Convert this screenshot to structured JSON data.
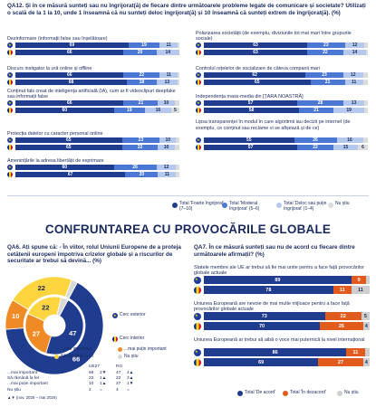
{
  "colors": {
    "dark": "#1f3c8f",
    "mid": "#4a78d4",
    "light": "#b5c8ee",
    "grey": "#dcdcdc",
    "pie_most": "#1f3c8f",
    "pie_same": "#fdd63f",
    "pie_less": "#f08a24",
    "pie_dk": "#d9d9d9",
    "agree": "#1f3c8f",
    "disagree": "#e25b1e",
    "dk": "#cfcfcf"
  },
  "qa12": {
    "title": "QA12. Și în ce măsură sunteți sau nu îngrijorat(ă) de fiecare dintre următoarele probleme legate de comunicare și societate? Utilizați o scală de la 1 la 10, unde 1 înseamnă că nu sunteți deloc îngrijorat(ă) și 10 înseamnă că sunteți extrem de îngrijorat(ă). (%)",
    "items": [
      {
        "label": "Dezinformare (informații false sau înșelătoare)",
        "eu": [
          69,
          19,
          11,
          1
        ],
        "ro": [
          66,
          20,
          14,
          0
        ]
      },
      {
        "label": "Discurs instigator la ură online și offline",
        "eu": [
          66,
          22,
          11,
          1
        ],
        "ro": [
          68,
          18,
          13,
          1
        ]
      },
      {
        "label": "Conținut fals creat de inteligența artificială (IA), cum ar fi videoclipuri deepfake sau informații false",
        "eu": [
          66,
          21,
          10,
          3
        ],
        "ro": [
          60,
          19,
          16,
          5
        ]
      },
      {
        "label": "Protecția datelor cu caracter personal online",
        "eu": [
          65,
          23,
          10,
          2
        ],
        "ro": [
          65,
          22,
          10,
          3
        ]
      },
      {
        "label": "Amenințările la adresa libertății de exprimare",
        "eu": [
          60,
          26,
          12,
          2
        ],
        "ro": [
          67,
          20,
          11,
          2
        ]
      },
      {
        "label": "Polarizarea societății (de exemplu, diviziunile tot mai mari între grupurile sociale)",
        "eu": [
          63,
          23,
          12,
          2
        ],
        "ro": [
          63,
          22,
          14,
          1
        ]
      },
      {
        "label": "Controlul rețelelor de socializare de câteva companii mari",
        "eu": [
          62,
          23,
          12,
          3
        ],
        "ro": [
          65,
          21,
          11,
          3
        ]
      },
      {
        "label": "Independența mass-media din [ȚARA NOASTRĂ]",
        "eu": [
          57,
          28,
          13,
          2
        ],
        "ro": [
          58,
          21,
          19,
          2
        ]
      },
      {
        "label": "Lipsa transparenței în modul în care algoritmii iau decizii pe internet (de exemplu, ce conținut sau reclame vi se afișează și de ce)",
        "eu": [
          55,
          26,
          16,
          3
        ],
        "ro": [
          57,
          22,
          15,
          6
        ]
      }
    ],
    "legend": [
      "Total 'Foarte îngrijorat' (7–10)",
      "Total 'Moderat îngrijorat' (5–6)",
      "Total 'Deloc sau puțin îngrijorat' (1–4)",
      "Nu știu"
    ]
  },
  "banner": "CONFRUNTAREA CU PROVOCĂRILE GLOBALE",
  "qa6": {
    "title": "QA6. Ați spune că: - În viitor, rolul Uniunii Europene de a proteja cetățenii europeni împotriva crizelor globale și a riscurilor de securitate ar trebui să devină... (%)",
    "outer_label": "Cerc exterior",
    "inner_label": "Cerc interior",
    "legend": [
      "...mai important",
      "...mai puțin important",
      "Să rămână la fel",
      "Nu știu"
    ],
    "table_header": [
      "",
      "UE27",
      "",
      "RO",
      ""
    ],
    "table_rows": [
      {
        "label": "...mai important",
        "eu": "66",
        "d": "2▼",
        "ro": "47",
        "d2": "4▲"
      },
      {
        "label": "Să rămână la fel",
        "eu": "22",
        "d": "1▲",
        "ro": "22",
        "d2": "3▲"
      },
      {
        "label": "...mai puțin important",
        "eu": "10",
        "d": "1▲",
        "ro": "27",
        "d2": "1▼"
      },
      {
        "label": "Nu știu",
        "eu": "2",
        "d": "=",
        "ro": "4",
        "d2": "="
      }
    ],
    "footnote": "▲▼ (nov. 2025 – mai 2026)"
  },
  "qa7": {
    "title": "QA7. În ce măsură sunteți sau nu de acord cu fiecare dintre următoarele afirmații? (%)",
    "items": [
      {
        "label": "Statele membre ale UE ar trebui să fie mai unite pentru a face față provocărilor globale actuale",
        "eu": [
          89,
          9,
          2
        ],
        "ro": [
          78,
          11,
          11
        ]
      },
      {
        "label": "Uniunea Europeană are nevoie de mai multe mijloace pentru a face față provocărilor globale actuale",
        "eu": [
          73,
          22,
          5
        ],
        "ro": [
          70,
          26,
          4
        ]
      },
      {
        "label": "Uniunea Europeană ar trebui să aibă o voce mai puternică la nivel internațional",
        "eu": [
          86,
          11,
          3
        ],
        "ro": [
          69,
          27,
          4
        ]
      }
    ],
    "legend": [
      "Total 'De acord'",
      "Total 'În dezacord'",
      "Nu știu"
    ]
  },
  "chart_data": [
    {
      "type": "bar",
      "title": "QA12. Și în ce măsură sunteți sau nu îngrijorat(ă) de fiecare dintre următoarele probleme legate de comunicare și societate? Utilizați o scală de la 1 la 10, unde 1 înseamnă că nu sunteți deloc îngrijorat(ă) și 10 înseamnă că sunteți extrem de îngrijorat(ă). (%)",
      "orientation": "horizontal-stacked",
      "categories": [
        "Dezinformare",
        "Discurs instigator la ură",
        "Conținut fals creat de IA",
        "Protecția datelor",
        "Amenințările la adresa libertății de exprimare",
        "Polarizarea societății",
        "Controlul rețelelor de socializare",
        "Independența mass-media",
        "Lipsa transparenței algoritmilor"
      ],
      "series": [
        {
          "name": "Total 'Foarte îngrijorat' (7–10)",
          "eu": [
            69,
            66,
            66,
            65,
            60,
            63,
            62,
            57,
            55
          ],
          "ro": [
            66,
            68,
            60,
            65,
            67,
            63,
            65,
            58,
            57
          ]
        },
        {
          "name": "Total 'Moderat îngrijorat' (5–6)",
          "eu": [
            19,
            22,
            21,
            23,
            26,
            23,
            23,
            28,
            26
          ],
          "ro": [
            20,
            18,
            19,
            22,
            20,
            22,
            21,
            21,
            22
          ]
        },
        {
          "name": "Total 'Deloc sau puțin îngrijorat' (1–4)",
          "eu": [
            11,
            11,
            10,
            10,
            12,
            12,
            12,
            13,
            16
          ],
          "ro": [
            14,
            13,
            16,
            10,
            11,
            14,
            11,
            19,
            15
          ]
        },
        {
          "name": "Nu știu",
          "eu": [
            1,
            1,
            3,
            2,
            2,
            2,
            3,
            2,
            3
          ],
          "ro": [
            0,
            1,
            5,
            3,
            2,
            1,
            3,
            2,
            6
          ]
        }
      ]
    },
    {
      "type": "pie",
      "title": "QA6. Ați spune că: - În viitor, rolul Uniunii Europene de a proteja cetățenii europeni împotriva crizelor globale și a riscurilor de securitate ar trebui să devină... (%)",
      "categories": [
        "...mai important",
        "Să rămână la fel",
        "...mai puțin important",
        "Nu știu"
      ],
      "outer_ue27": [
        66,
        22,
        10,
        2
      ],
      "inner_ro": [
        47,
        22,
        27,
        4
      ]
    },
    {
      "type": "bar",
      "title": "QA7. În ce măsură sunteți sau nu de acord cu fiecare dintre următoarele afirmații? (%)",
      "orientation": "horizontal-stacked",
      "series": [
        {
          "name": "Total 'De acord'",
          "eu": [
            89,
            73,
            86
          ],
          "ro": [
            78,
            70,
            69
          ]
        },
        {
          "name": "Total 'În dezacord'",
          "eu": [
            9,
            22,
            11
          ],
          "ro": [
            11,
            26,
            27
          ]
        },
        {
          "name": "Nu știu",
          "eu": [
            2,
            5,
            3
          ],
          "ro": [
            11,
            4,
            4
          ]
        }
      ]
    }
  ]
}
